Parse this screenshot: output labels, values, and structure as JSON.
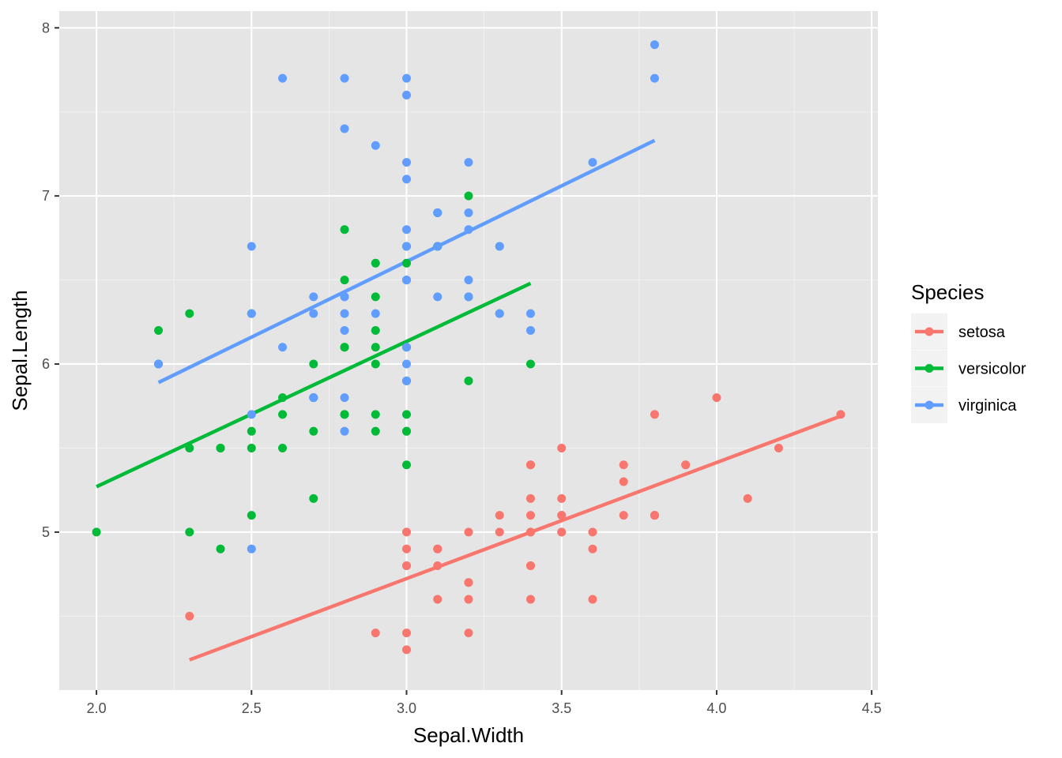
{
  "chart_data": {
    "type": "scatter",
    "title": "",
    "xlabel": "Sepal.Width",
    "ylabel": "Sepal.Length",
    "xlim": [
      1.88,
      4.52
    ],
    "ylim": [
      4.06,
      8.1
    ],
    "x_ticks": [
      2.0,
      2.5,
      3.0,
      3.5,
      4.0,
      4.5
    ],
    "x_tick_labels": [
      "2.0",
      "2.5",
      "3.0",
      "3.5",
      "4.0",
      "4.5"
    ],
    "y_ticks": [
      5,
      6,
      7,
      8
    ],
    "y_tick_labels": [
      "5",
      "6",
      "7",
      "8"
    ],
    "grid": true,
    "legend": {
      "title": "Species",
      "position": "right"
    },
    "panel_background": "#e5e5e5",
    "series": [
      {
        "name": "setosa",
        "color": "#f8766d",
        "points": [
          [
            3.5,
            5.1
          ],
          [
            3.0,
            4.9
          ],
          [
            3.2,
            4.7
          ],
          [
            3.1,
            4.6
          ],
          [
            3.6,
            5.0
          ],
          [
            3.9,
            5.4
          ],
          [
            3.4,
            4.6
          ],
          [
            3.4,
            5.0
          ],
          [
            2.9,
            4.4
          ],
          [
            3.1,
            4.9
          ],
          [
            3.7,
            5.4
          ],
          [
            3.4,
            4.8
          ],
          [
            3.0,
            4.8
          ],
          [
            3.0,
            4.3
          ],
          [
            4.0,
            5.8
          ],
          [
            4.4,
            5.7
          ],
          [
            3.9,
            5.4
          ],
          [
            3.5,
            5.1
          ],
          [
            3.8,
            5.7
          ],
          [
            3.8,
            5.1
          ],
          [
            3.4,
            5.4
          ],
          [
            3.7,
            5.1
          ],
          [
            3.6,
            4.6
          ],
          [
            3.3,
            5.1
          ],
          [
            3.4,
            4.8
          ],
          [
            3.0,
            5.0
          ],
          [
            3.4,
            5.0
          ],
          [
            3.5,
            5.2
          ],
          [
            3.4,
            5.2
          ],
          [
            3.2,
            4.7
          ],
          [
            3.1,
            4.8
          ],
          [
            3.4,
            5.4
          ],
          [
            4.1,
            5.2
          ],
          [
            4.2,
            5.5
          ],
          [
            3.1,
            4.9
          ],
          [
            3.2,
            5.0
          ],
          [
            3.5,
            5.5
          ],
          [
            3.6,
            4.9
          ],
          [
            3.0,
            4.4
          ],
          [
            3.4,
            5.1
          ],
          [
            3.5,
            5.0
          ],
          [
            2.3,
            4.5
          ],
          [
            3.2,
            4.4
          ],
          [
            3.5,
            5.0
          ],
          [
            3.8,
            5.1
          ],
          [
            3.0,
            4.8
          ],
          [
            3.8,
            5.1
          ],
          [
            3.2,
            4.6
          ],
          [
            3.7,
            5.3
          ],
          [
            3.3,
            5.0
          ]
        ],
        "fit": {
          "x": [
            2.3,
            4.4
          ],
          "y": [
            4.24,
            5.69
          ]
        }
      },
      {
        "name": "versicolor",
        "color": "#00ba38",
        "points": [
          [
            3.2,
            7.0
          ],
          [
            3.2,
            6.4
          ],
          [
            3.1,
            6.9
          ],
          [
            2.3,
            5.5
          ],
          [
            2.8,
            6.5
          ],
          [
            2.8,
            5.7
          ],
          [
            3.3,
            6.3
          ],
          [
            2.4,
            4.9
          ],
          [
            2.9,
            6.6
          ],
          [
            2.7,
            5.2
          ],
          [
            2.0,
            5.0
          ],
          [
            3.0,
            5.9
          ],
          [
            2.2,
            6.0
          ],
          [
            2.9,
            6.1
          ],
          [
            2.9,
            5.6
          ],
          [
            3.1,
            6.7
          ],
          [
            3.0,
            5.6
          ],
          [
            2.7,
            5.8
          ],
          [
            2.2,
            6.2
          ],
          [
            2.5,
            5.6
          ],
          [
            3.2,
            5.9
          ],
          [
            2.8,
            6.1
          ],
          [
            2.5,
            6.3
          ],
          [
            2.8,
            6.1
          ],
          [
            2.9,
            6.4
          ],
          [
            3.0,
            6.6
          ],
          [
            2.8,
            6.8
          ],
          [
            3.0,
            6.7
          ],
          [
            2.9,
            6.0
          ],
          [
            2.6,
            5.7
          ],
          [
            2.4,
            5.5
          ],
          [
            2.4,
            5.5
          ],
          [
            2.7,
            5.8
          ],
          [
            2.7,
            6.0
          ],
          [
            3.0,
            5.4
          ],
          [
            3.4,
            6.0
          ],
          [
            3.1,
            6.7
          ],
          [
            2.3,
            6.3
          ],
          [
            3.0,
            5.6
          ],
          [
            2.5,
            5.5
          ],
          [
            2.6,
            5.5
          ],
          [
            3.0,
            6.1
          ],
          [
            2.6,
            5.8
          ],
          [
            2.3,
            5.0
          ],
          [
            2.7,
            5.6
          ],
          [
            3.0,
            5.7
          ],
          [
            2.9,
            5.7
          ],
          [
            2.9,
            6.2
          ],
          [
            2.5,
            5.1
          ],
          [
            2.8,
            5.7
          ]
        ],
        "fit": {
          "x": [
            2.0,
            3.4
          ],
          "y": [
            5.27,
            6.48
          ]
        }
      },
      {
        "name": "virginica",
        "color": "#619cff",
        "points": [
          [
            3.3,
            6.3
          ],
          [
            2.7,
            5.8
          ],
          [
            3.0,
            7.1
          ],
          [
            2.9,
            6.3
          ],
          [
            3.0,
            6.5
          ],
          [
            3.0,
            7.6
          ],
          [
            2.5,
            4.9
          ],
          [
            2.9,
            7.3
          ],
          [
            2.5,
            6.7
          ],
          [
            3.6,
            7.2
          ],
          [
            3.2,
            6.5
          ],
          [
            2.7,
            6.4
          ],
          [
            3.0,
            6.8
          ],
          [
            2.5,
            5.7
          ],
          [
            2.8,
            5.8
          ],
          [
            3.2,
            6.4
          ],
          [
            3.0,
            6.5
          ],
          [
            3.8,
            7.7
          ],
          [
            2.6,
            7.7
          ],
          [
            2.2,
            6.0
          ],
          [
            3.2,
            6.9
          ],
          [
            2.8,
            5.6
          ],
          [
            2.8,
            7.7
          ],
          [
            2.7,
            6.3
          ],
          [
            3.3,
            6.7
          ],
          [
            3.2,
            7.2
          ],
          [
            2.8,
            6.2
          ],
          [
            3.0,
            6.1
          ],
          [
            2.8,
            6.4
          ],
          [
            3.0,
            7.2
          ],
          [
            2.8,
            7.4
          ],
          [
            3.8,
            7.9
          ],
          [
            2.8,
            6.4
          ],
          [
            2.8,
            6.3
          ],
          [
            2.6,
            6.1
          ],
          [
            3.0,
            7.7
          ],
          [
            3.4,
            6.3
          ],
          [
            3.1,
            6.4
          ],
          [
            3.0,
            6.0
          ],
          [
            3.1,
            6.9
          ],
          [
            3.1,
            6.7
          ],
          [
            3.1,
            6.9
          ],
          [
            2.7,
            5.8
          ],
          [
            3.2,
            6.8
          ],
          [
            3.3,
            6.7
          ],
          [
            3.0,
            6.7
          ],
          [
            2.5,
            6.3
          ],
          [
            3.0,
            6.5
          ],
          [
            3.4,
            6.2
          ],
          [
            3.0,
            5.9
          ]
        ],
        "fit": {
          "x": [
            2.2,
            3.8
          ],
          "y": [
            5.89,
            7.33
          ]
        }
      }
    ]
  }
}
